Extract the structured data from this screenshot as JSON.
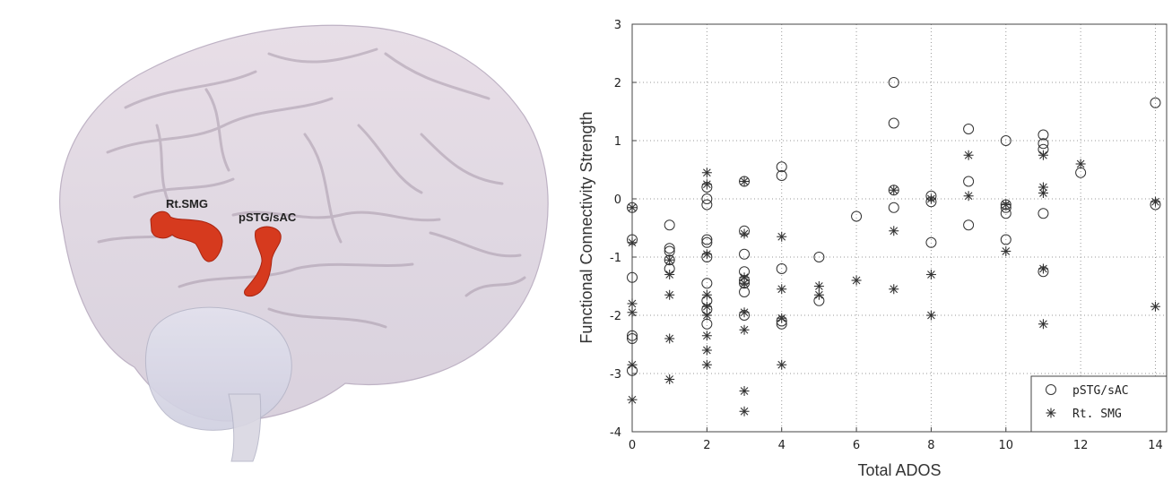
{
  "brain": {
    "region_labels": [
      "Rt.SMG",
      "pSTG/sAC"
    ],
    "region_color": "#d63a1e"
  },
  "chart_data": {
    "type": "scatter",
    "xlabel": "Total ADOS",
    "ylabel": "Functional Connectivity Strength",
    "xlim": [
      0,
      14.3
    ],
    "ylim": [
      -4,
      3
    ],
    "xticks": [
      0,
      2,
      4,
      6,
      8,
      10,
      12,
      14
    ],
    "yticks": [
      -4,
      -3,
      -2,
      -1,
      0,
      1,
      2,
      3
    ],
    "grid": true,
    "grid_style": "dotted",
    "legend_position": "bottom-right",
    "series": [
      {
        "name": "pSTG/sAC",
        "marker": "circle",
        "points": [
          [
            0,
            -0.15
          ],
          [
            0,
            -0.7
          ],
          [
            0,
            -1.35
          ],
          [
            0,
            -2.35
          ],
          [
            0,
            -2.4
          ],
          [
            0,
            -2.95
          ],
          [
            1,
            -0.45
          ],
          [
            1,
            -0.85
          ],
          [
            1,
            -0.9
          ],
          [
            1,
            -1.05
          ],
          [
            1,
            -1.2
          ],
          [
            2,
            0.2
          ],
          [
            2,
            0.0
          ],
          [
            2,
            -0.1
          ],
          [
            2,
            -0.7
          ],
          [
            2,
            -0.75
          ],
          [
            2,
            -1.0
          ],
          [
            2,
            -1.45
          ],
          [
            2,
            -1.75
          ],
          [
            2,
            -1.9
          ],
          [
            2,
            -2.15
          ],
          [
            3,
            0.3
          ],
          [
            3,
            -0.55
          ],
          [
            3,
            -0.95
          ],
          [
            3,
            -1.25
          ],
          [
            3,
            -1.4
          ],
          [
            3,
            -1.45
          ],
          [
            3,
            -1.6
          ],
          [
            3,
            -2.0
          ],
          [
            4,
            0.55
          ],
          [
            4,
            0.4
          ],
          [
            4,
            -1.2
          ],
          [
            4,
            -2.1
          ],
          [
            4,
            -2.15
          ],
          [
            5,
            -1.0
          ],
          [
            5,
            -1.75
          ],
          [
            6,
            -0.3
          ],
          [
            7,
            2.0
          ],
          [
            7,
            1.3
          ],
          [
            7,
            0.15
          ],
          [
            7,
            -0.15
          ],
          [
            8,
            0.05
          ],
          [
            8,
            -0.05
          ],
          [
            8,
            -0.75
          ],
          [
            9,
            1.2
          ],
          [
            9,
            0.3
          ],
          [
            9,
            -0.45
          ],
          [
            10,
            1.0
          ],
          [
            10,
            -0.1
          ],
          [
            10,
            -0.15
          ],
          [
            10,
            -0.25
          ],
          [
            10,
            -0.7
          ],
          [
            11,
            1.1
          ],
          [
            11,
            0.95
          ],
          [
            11,
            0.85
          ],
          [
            11,
            -0.25
          ],
          [
            11,
            -1.25
          ],
          [
            12,
            0.45
          ],
          [
            14,
            1.65
          ],
          [
            14,
            -0.1
          ]
        ]
      },
      {
        "name": "Rt. SMG",
        "marker": "asterisk",
        "points": [
          [
            0,
            -0.15
          ],
          [
            0,
            -0.75
          ],
          [
            0,
            -1.8
          ],
          [
            0,
            -1.95
          ],
          [
            0,
            -2.85
          ],
          [
            0,
            -3.45
          ],
          [
            1,
            -1.05
          ],
          [
            1,
            -1.3
          ],
          [
            1,
            -1.65
          ],
          [
            1,
            -2.4
          ],
          [
            1,
            -3.1
          ],
          [
            2,
            0.45
          ],
          [
            2,
            0.25
          ],
          [
            2,
            -0.95
          ],
          [
            2,
            -1.65
          ],
          [
            2,
            -1.85
          ],
          [
            2,
            -2.0
          ],
          [
            2,
            -2.35
          ],
          [
            2,
            -2.6
          ],
          [
            2,
            -2.85
          ],
          [
            3,
            0.3
          ],
          [
            3,
            -0.6
          ],
          [
            3,
            -1.35
          ],
          [
            3,
            -1.45
          ],
          [
            3,
            -1.95
          ],
          [
            3,
            -2.25
          ],
          [
            3,
            -3.3
          ],
          [
            3,
            -3.65
          ],
          [
            4,
            -0.65
          ],
          [
            4,
            -1.55
          ],
          [
            4,
            -2.05
          ],
          [
            4,
            -2.85
          ],
          [
            5,
            -1.5
          ],
          [
            5,
            -1.65
          ],
          [
            6,
            -1.4
          ],
          [
            7,
            0.15
          ],
          [
            7,
            -0.55
          ],
          [
            7,
            -1.55
          ],
          [
            8,
            0.0
          ],
          [
            8,
            -1.3
          ],
          [
            8,
            -2.0
          ],
          [
            9,
            0.75
          ],
          [
            9,
            0.05
          ],
          [
            10,
            -0.1
          ],
          [
            10,
            -0.9
          ],
          [
            11,
            0.75
          ],
          [
            11,
            0.2
          ],
          [
            11,
            0.1
          ],
          [
            11,
            -1.2
          ],
          [
            11,
            -2.15
          ],
          [
            12,
            0.6
          ],
          [
            14,
            -0.05
          ],
          [
            14,
            -1.85
          ]
        ]
      }
    ]
  }
}
